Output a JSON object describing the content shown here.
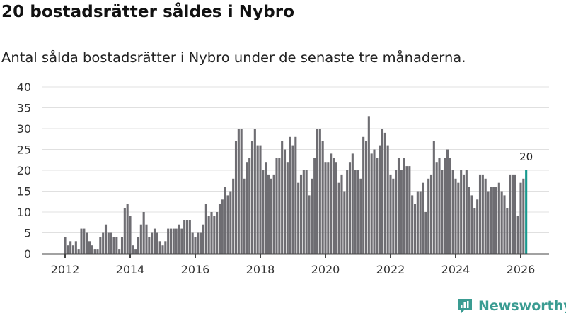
{
  "header": {
    "title": "20 bostadsrätter såldes i Nybro",
    "subtitle": "Antal sålda bostadsrätter i Nybro under de senaste tre månaderna."
  },
  "logo": {
    "text": "Newsworthy",
    "icon": "newsworthy-chart-icon"
  },
  "colors": {
    "bar": "#6e6d72",
    "highlight": "#17998e",
    "grid": "#e0e0e0",
    "axis": "#444444"
  },
  "chart_data": {
    "type": "bar",
    "title": "20 bostadsrätter såldes i Nybro",
    "subtitle": "Antal sålda bostadsrätter i Nybro under de senaste tre månaderna.",
    "xlabel": "",
    "ylabel": "",
    "ylim": [
      0,
      40
    ],
    "yticks": [
      0,
      5,
      10,
      15,
      20,
      25,
      30,
      35,
      40
    ],
    "xticks": [
      "2012",
      "2014",
      "2016",
      "2018",
      "2020",
      "2022",
      "2024",
      "2026"
    ],
    "start": "2012-01",
    "frequency": "monthly",
    "grid": true,
    "highlight_label": "20",
    "values": [
      4,
      2,
      3,
      2,
      3,
      1,
      6,
      6,
      5,
      3,
      2,
      1,
      1,
      4,
      5,
      7,
      5,
      5,
      4,
      4,
      1,
      4,
      11,
      12,
      9,
      2,
      1,
      4,
      7,
      10,
      7,
      4,
      5,
      6,
      5,
      3,
      2,
      3,
      6,
      6,
      6,
      6,
      7,
      6,
      8,
      8,
      8,
      5,
      4,
      5,
      5,
      7,
      12,
      9,
      10,
      9,
      10,
      12,
      13,
      16,
      14,
      15,
      18,
      27,
      30,
      30,
      18,
      22,
      23,
      27,
      30,
      26,
      26,
      20,
      22,
      19,
      18,
      19,
      23,
      23,
      27,
      25,
      22,
      28,
      26,
      28,
      17,
      19,
      20,
      20,
      14,
      18,
      23,
      30,
      30,
      27,
      22,
      22,
      24,
      23,
      22,
      17,
      19,
      15,
      20,
      22,
      24,
      20,
      20,
      18,
      28,
      27,
      33,
      24,
      25,
      23,
      26,
      30,
      29,
      26,
      19,
      18,
      20,
      23,
      20,
      23,
      21,
      21,
      14,
      12,
      15,
      15,
      17,
      10,
      18,
      19,
      27,
      22,
      23,
      20,
      23,
      25,
      23,
      20,
      18,
      17,
      20,
      19,
      20,
      16,
      14,
      11,
      13,
      19,
      19,
      18,
      15,
      16,
      16,
      16,
      17,
      15,
      14,
      11,
      19,
      19,
      19,
      9,
      17,
      18,
      20
    ]
  }
}
